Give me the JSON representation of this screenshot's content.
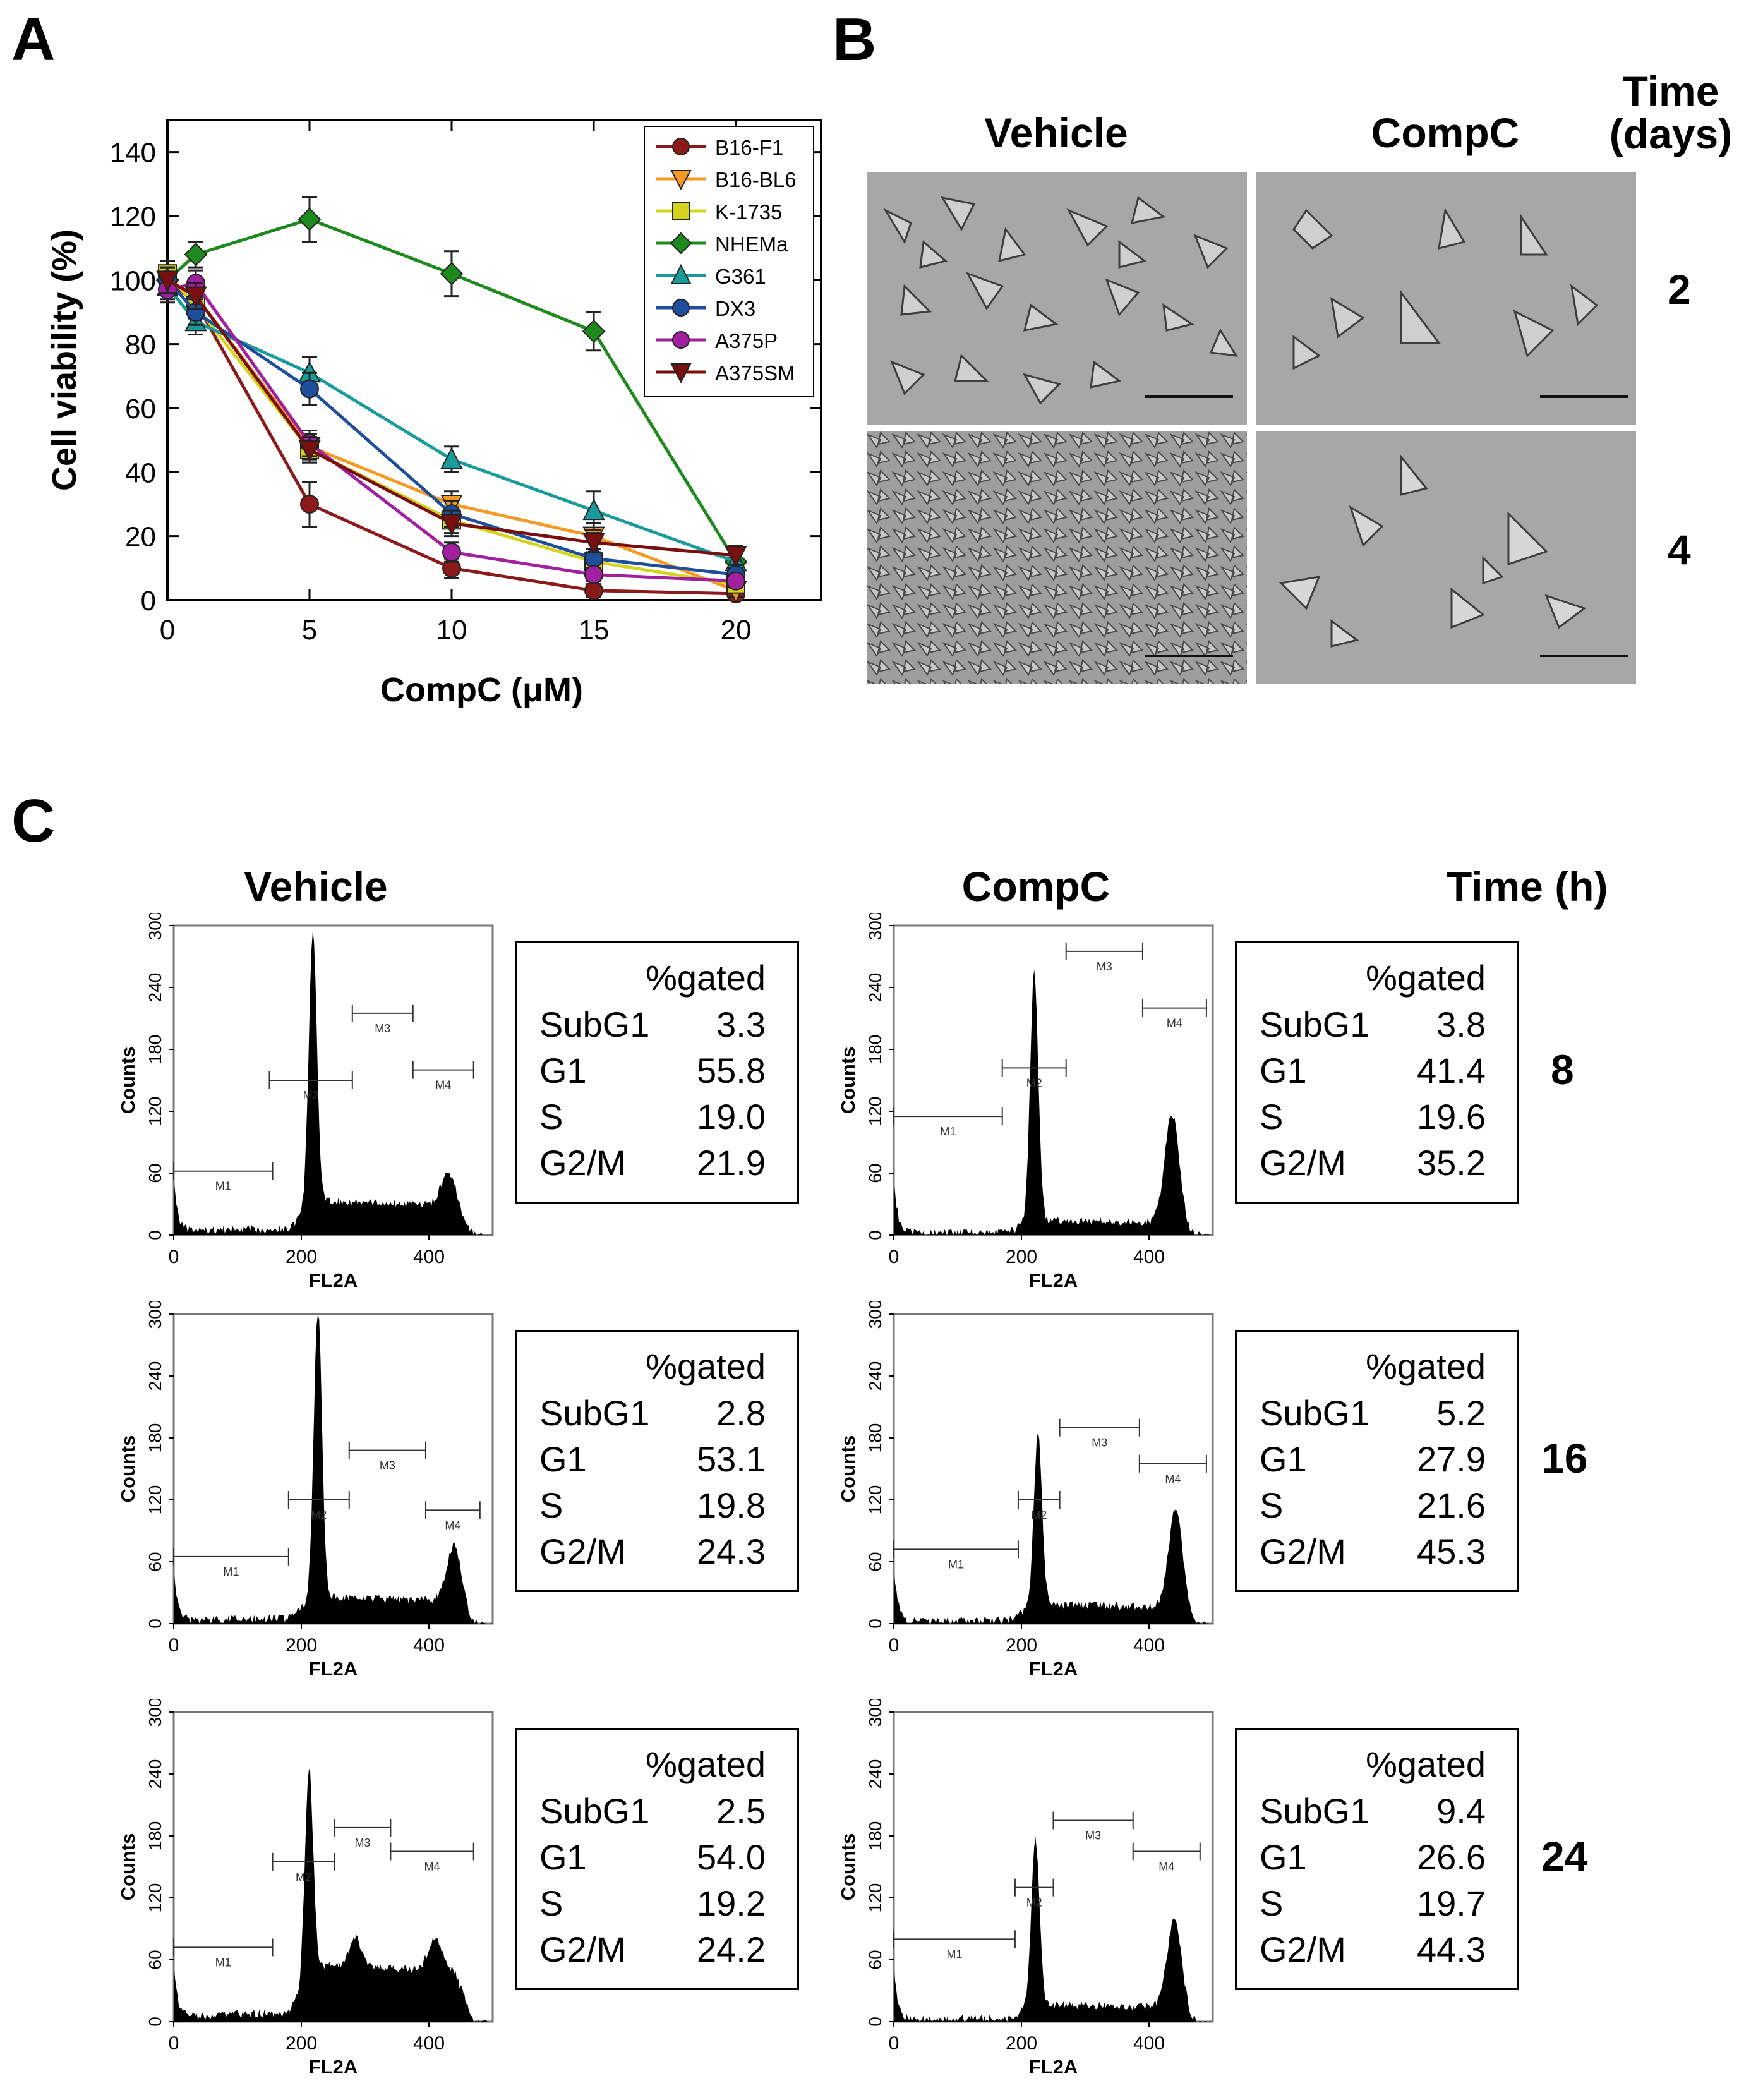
{
  "panels": {
    "a": "A",
    "b": "B",
    "c": "C"
  },
  "panel_b": {
    "vehicle_label": "Vehicle",
    "compc_label": "CompC",
    "time_label_1": "Time",
    "time_label_2": "(days)",
    "times": [
      "2",
      "4"
    ]
  },
  "panel_c": {
    "vehicle_label": "Vehicle",
    "compc_label": "CompC",
    "time_label": "Time (h)",
    "times": [
      "8",
      "16",
      "24"
    ],
    "y_axis_label": "Counts",
    "x_axis_label": "FL2A",
    "y_ticks": [
      "0",
      "60",
      "120",
      "180",
      "240",
      "300"
    ],
    "x_ticks": [
      "0",
      "200",
      "400"
    ],
    "gate_labels": [
      "M1",
      "M2",
      "M3",
      "M4"
    ],
    "table_header": "%gated",
    "phase_labels": [
      "SubG1",
      "G1",
      "S",
      "G2/M"
    ],
    "stats": {
      "vehicle": [
        [
          "3.3",
          "55.8",
          "19.0",
          "21.9"
        ],
        [
          "2.8",
          "53.1",
          "19.8",
          "24.3"
        ],
        [
          "2.5",
          "54.0",
          "19.2",
          "24.2"
        ]
      ],
      "compc": [
        [
          "3.8",
          "41.4",
          "19.6",
          "35.2"
        ],
        [
          "5.2",
          "27.9",
          "21.6",
          "45.3"
        ],
        [
          "9.4",
          "26.6",
          "19.7",
          "44.3"
        ]
      ]
    }
  },
  "chart_data": {
    "type": "line",
    "title": "",
    "xlabel": "CompC (μM)",
    "ylabel": "Cell viability (%)",
    "xlim": [
      0,
      23
    ],
    "ylim": [
      0,
      150
    ],
    "xticks": [
      0,
      5,
      10,
      15,
      20
    ],
    "yticks": [
      0,
      20,
      40,
      60,
      80,
      100,
      120,
      140
    ],
    "x": [
      0,
      1,
      5,
      10,
      15,
      20
    ],
    "legend_position": "top-right",
    "series": [
      {
        "name": "B16-F1",
        "color": "#8b1a1a",
        "marker": "circle",
        "values": [
          100,
          93,
          30,
          10,
          3,
          2
        ],
        "errors": [
          4,
          4,
          7,
          3,
          2,
          2
        ]
      },
      {
        "name": "B16-BL6",
        "color": "#f59a23",
        "marker": "tri-down",
        "values": [
          100,
          95,
          48,
          30,
          20,
          3
        ],
        "errors": [
          4,
          4,
          4,
          4,
          4,
          2
        ]
      },
      {
        "name": "K-1735",
        "color": "#d4d41c",
        "marker": "square",
        "values": [
          102,
          92,
          47,
          25,
          12,
          5
        ],
        "errors": [
          4,
          4,
          4,
          4,
          3,
          2
        ]
      },
      {
        "name": "NHEMa",
        "color": "#1e8a1e",
        "marker": "diamond",
        "values": [
          100,
          108,
          119,
          102,
          84,
          12
        ],
        "errors": [
          4,
          4,
          7,
          7,
          6,
          3
        ]
      },
      {
        "name": "G361",
        "color": "#1a9b9b",
        "marker": "tri-up",
        "values": [
          98,
          87,
          71,
          44,
          28,
          12
        ],
        "errors": [
          4,
          4,
          5,
          4,
          6,
          3
        ]
      },
      {
        "name": "DX3",
        "color": "#1f4e9c",
        "marker": "circle",
        "values": [
          100,
          90,
          66,
          27,
          13,
          8
        ],
        "errors": [
          4,
          4,
          5,
          4,
          3,
          2
        ]
      },
      {
        "name": "A375P",
        "color": "#a020a0",
        "marker": "circle",
        "values": [
          97,
          99,
          49,
          15,
          8,
          6
        ],
        "errors": [
          4,
          4,
          4,
          3,
          2,
          2
        ]
      },
      {
        "name": "A375SM",
        "color": "#7a0f0f",
        "marker": "tri-down",
        "values": [
          100,
          95,
          47,
          24,
          18,
          14
        ],
        "errors": [
          4,
          4,
          4,
          4,
          3,
          3
        ]
      }
    ]
  }
}
